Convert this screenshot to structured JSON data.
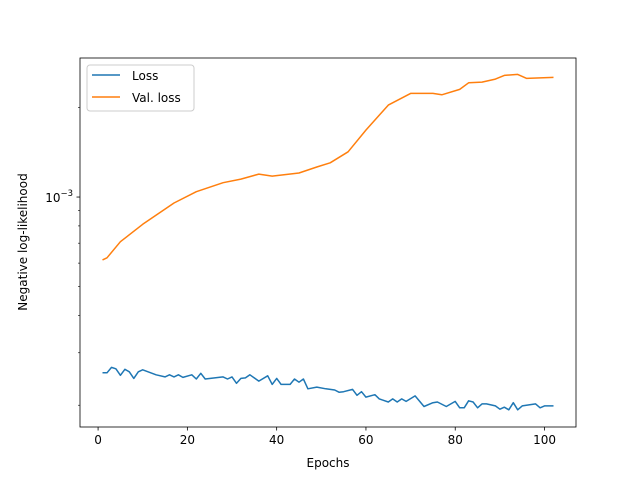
{
  "chart_data": {
    "type": "line",
    "title": "",
    "xlabel": "Epochs",
    "ylabel": "Negative log-likelihood",
    "xlim": [
      -4.05,
      107.05
    ],
    "ylim": [
      0.000169,
      0.00293
    ],
    "yscale": "log",
    "grid": false,
    "legend_placement": "top-left",
    "x_ticks": [
      0,
      20,
      40,
      60,
      80,
      100
    ],
    "y_major_ticks": [
      {
        "value": 0.001,
        "label": "10",
        "exponent": "−3"
      }
    ],
    "y_minor_ticks": [
      0.0002,
      0.0003,
      0.0004,
      0.0005,
      0.0006,
      0.0007,
      0.0008,
      0.0009,
      0.002
    ],
    "series": [
      {
        "name": "Loss",
        "color": "#1f77b4",
        "x": [
          1,
          2,
          3,
          4,
          5,
          6,
          7,
          8,
          9,
          10,
          13,
          15,
          16,
          17,
          18,
          19,
          21,
          22,
          23,
          24,
          28,
          29,
          30,
          31,
          32,
          33,
          34,
          36,
          38,
          39,
          40,
          41,
          43,
          44,
          45,
          46,
          47,
          49,
          51,
          53,
          54,
          55,
          57,
          58,
          59,
          60,
          62,
          63,
          65,
          66,
          67,
          68,
          69,
          71,
          73,
          75,
          76,
          78,
          80,
          81,
          82,
          83,
          84,
          85,
          86,
          87,
          89,
          90,
          91,
          92,
          93,
          94,
          95,
          98,
          99,
          100,
          102
        ],
        "y": [
          0.000257,
          0.000257,
          0.000268,
          0.000265,
          0.000252,
          0.000264,
          0.000259,
          0.000246,
          0.000259,
          0.000263,
          0.000253,
          0.000249,
          0.000253,
          0.000249,
          0.000253,
          0.000248,
          0.000253,
          0.000245,
          0.000256,
          0.000245,
          0.000249,
          0.000245,
          0.000249,
          0.000237,
          0.000246,
          0.000247,
          0.000253,
          0.000241,
          0.000251,
          0.000235,
          0.000246,
          0.000235,
          0.000235,
          0.000245,
          0.000239,
          0.000245,
          0.000227,
          0.00023,
          0.000227,
          0.000225,
          0.000221,
          0.000222,
          0.000226,
          0.000216,
          0.000222,
          0.000213,
          0.000217,
          0.00021,
          0.000205,
          0.00021,
          0.000205,
          0.00021,
          0.000206,
          0.000215,
          0.000198,
          0.000204,
          0.000205,
          0.000198,
          0.000206,
          0.000196,
          0.000196,
          0.000207,
          0.000205,
          0.000196,
          0.000202,
          0.000202,
          0.000199,
          0.000194,
          0.000197,
          0.000193,
          0.000204,
          0.000193,
          0.000199,
          0.000202,
          0.000196,
          0.000199,
          0.000199
        ]
      },
      {
        "name": "Val. loss",
        "color": "#ff7f0e",
        "x": [
          1,
          2,
          5,
          10,
          17,
          22,
          28,
          32,
          36,
          39,
          45,
          49,
          52,
          56,
          60,
          65,
          70,
          75,
          77,
          81,
          83,
          86,
          89,
          91,
          94,
          96,
          102
        ],
        "y": [
          0.000615,
          0.000625,
          0.000708,
          0.00081,
          0.000955,
          0.001042,
          0.001117,
          0.001149,
          0.001194,
          0.001176,
          0.001204,
          0.001261,
          0.001303,
          0.001419,
          0.001678,
          0.002035,
          0.002228,
          0.002228,
          0.002204,
          0.002298,
          0.002418,
          0.002431,
          0.002489,
          0.002561,
          0.002581,
          0.002502,
          0.002522
        ]
      }
    ]
  }
}
